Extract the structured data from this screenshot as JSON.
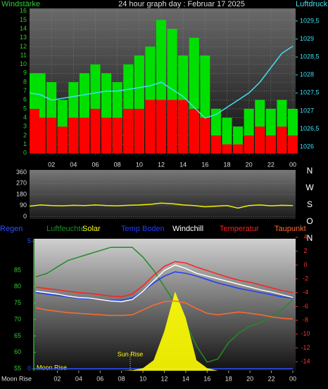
{
  "chart_data": [
    {
      "type": "bar",
      "title": "24 hour graph day : Februar 17 2025",
      "y_label": "Windstärke",
      "y2_label": "Luftdruck",
      "x": [
        0,
        1,
        2,
        3,
        4,
        5,
        6,
        7,
        8,
        9,
        10,
        11,
        12,
        13,
        14,
        15,
        16,
        17,
        18,
        19,
        20,
        21,
        22,
        23,
        24
      ],
      "xlim": [
        0,
        24
      ],
      "xticks": [
        {
          "value": 2,
          "label": "02"
        },
        {
          "value": 4,
          "label": "04"
        },
        {
          "value": 6,
          "label": "06"
        },
        {
          "value": 8,
          "label": "08"
        },
        10,
        12,
        14,
        16,
        18,
        20,
        22,
        {
          "value": 24,
          "label": "00"
        }
      ],
      "ylim": [
        -0.3,
        16.3
      ],
      "yticks": [
        0,
        1,
        2,
        3,
        4,
        5,
        6,
        7,
        8,
        9,
        10,
        11,
        12,
        13,
        14,
        15,
        16
      ],
      "y2lim": [
        1025.75,
        1029.85
      ],
      "y2ticks": [
        1026,
        {
          "value": 1026.5,
          "label": "1026,5"
        },
        1027,
        {
          "value": 1027.5,
          "label": "1027,5"
        },
        1028,
        {
          "value": 1028.5,
          "label": "1028,5"
        },
        1029,
        {
          "value": 1029.5,
          "label": "1029,5"
        }
      ],
      "grid": true,
      "series": [
        {
          "color": "#00e000",
          "values": [
            9,
            9,
            8,
            6,
            8,
            9,
            10,
            9,
            8,
            10,
            11,
            12,
            15,
            14,
            11,
            13,
            11,
            5,
            4,
            3,
            5,
            6,
            5,
            6,
            5
          ]
        },
        {
          "color": "#ff0000",
          "values": [
            5,
            4,
            4,
            3,
            4,
            4,
            5,
            4,
            4,
            5,
            5,
            6,
            6,
            6,
            6,
            5,
            4,
            2,
            1,
            1,
            2,
            3,
            2,
            3,
            2
          ]
        },
        {
          "type": "line",
          "axis": "y2",
          "color": "#40e0f0",
          "values": [
            1027.5,
            1027.45,
            1027.3,
            1027.35,
            1027.4,
            1027.45,
            1027.5,
            1027.55,
            1027.55,
            1027.6,
            1027.65,
            1027.7,
            1027.8,
            1027.6,
            1027.4,
            1027.1,
            1026.8,
            1026.9,
            1027.1,
            1027.3,
            1027.5,
            1027.8,
            1028.2,
            1028.6,
            1028.8
          ]
        }
      ]
    },
    {
      "type": "line",
      "x": [
        0,
        1,
        2,
        3,
        4,
        5,
        6,
        7,
        8,
        9,
        10,
        11,
        12,
        13,
        14,
        15,
        16,
        17,
        18,
        19,
        20,
        21,
        22,
        23,
        24
      ],
      "xlim": [
        0,
        24
      ],
      "ylim": [
        -20,
        380
      ],
      "yticks": [
        360,
        270,
        180,
        90,
        0
      ],
      "compass": [
        "N",
        "W",
        "S",
        "O",
        "N"
      ],
      "series": [
        {
          "color": "#f0f000",
          "values": [
            85,
            95,
            90,
            88,
            92,
            90,
            95,
            90,
            88,
            92,
            95,
            100,
            110,
            105,
            95,
            90,
            80,
            85,
            90,
            70,
            90,
            95,
            88,
            92,
            90
          ]
        }
      ]
    },
    {
      "type": "line",
      "x": [
        0,
        1,
        2,
        3,
        4,
        5,
        6,
        7,
        8,
        9,
        10,
        11,
        12,
        13,
        14,
        15,
        16,
        17,
        18,
        19,
        20,
        21,
        22,
        23,
        24
      ],
      "xlim": [
        0,
        24
      ],
      "xticks": [
        {
          "value": 2,
          "label": "02"
        },
        {
          "value": 4,
          "label": "04"
        },
        {
          "value": 6,
          "label": "06"
        },
        {
          "value": 8,
          "label": "08"
        },
        10,
        12,
        14,
        16,
        18,
        20,
        22,
        {
          "value": 24,
          "label": "00"
        }
      ],
      "ylim": [
        54.4,
        94.6
      ],
      "yticks": [
        85,
        80,
        75,
        70,
        65,
        60,
        55
      ],
      "y2lim": [
        -15.3,
        3.8
      ],
      "y2ticks": [
        4,
        2,
        0,
        -2,
        -4,
        -6,
        -8,
        -10,
        -12,
        -14
      ],
      "y3lim": [
        -0.08,
        5.1
      ],
      "y3ticks": [
        5,
        0
      ],
      "y4lim": [
        0,
        500
      ],
      "annotations": [
        "Sun Rise",
        "Moon Rise",
        "Moon Rise"
      ],
      "series": [
        {
          "name": "Regen",
          "axis": "y3",
          "color": "#3050ff",
          "values": [
            0,
            0,
            0,
            0,
            0,
            0,
            0,
            0,
            0,
            0,
            0,
            0,
            0,
            0,
            0,
            0,
            0,
            0,
            0,
            0,
            0,
            0,
            0,
            0,
            0
          ]
        },
        {
          "name": "Luftfeuchte",
          "color": "#228b22",
          "values": [
            83,
            84,
            86,
            88,
            89,
            90,
            91,
            92,
            92,
            92,
            89,
            85,
            80,
            75,
            69,
            62,
            57,
            58,
            63,
            66,
            68,
            69,
            71,
            73,
            76
          ]
        },
        {
          "name": "Solar",
          "type": "area",
          "axis": "y4",
          "color": "#ffff00",
          "values": [
            0,
            0,
            0,
            0,
            0,
            0,
            0,
            0,
            0,
            2,
            10,
            40,
            150,
            300,
            200,
            40,
            10,
            0,
            0,
            0,
            0,
            0,
            0,
            0,
            0
          ]
        },
        {
          "name": "Temp Boden",
          "axis": "y2",
          "color": "#1e3cff",
          "values": [
            -4,
            -4.2,
            -4.4,
            -4.6,
            -4.8,
            -4.9,
            -5,
            -5.1,
            -5.1,
            -4.8,
            -3.8,
            -2.6,
            -1.6,
            -1,
            -1.2,
            -1.6,
            -2.1,
            -2.6,
            -3,
            -3.4,
            -3.7,
            -4,
            -4.3,
            -4.6,
            -4.8
          ]
        },
        {
          "name": "Windchill",
          "axis": "y2",
          "color": "#ffffff",
          "values": [
            -3.8,
            -4,
            -4.2,
            -4.5,
            -4.7,
            -4.8,
            -5,
            -5.2,
            -5.3,
            -5,
            -3.8,
            -2.3,
            -0.8,
            0,
            -0.5,
            -1.2,
            -1.6,
            -2,
            -2.4,
            -2.8,
            -3.2,
            -3.6,
            -3.9,
            -4.3,
            -4.7
          ]
        },
        {
          "name": "Temperatur",
          "axis": "y2",
          "color": "#ff2020",
          "values": [
            -3.2,
            -3.4,
            -3.6,
            -3.8,
            -4,
            -4.1,
            -4.3,
            -4.5,
            -4.6,
            -4.2,
            -3,
            -1.5,
            -0.2,
            0.5,
            0.3,
            -0.3,
            -0.8,
            -1.3,
            -1.8,
            -2.2,
            -2.5,
            -2.9,
            -3.3,
            -3.7,
            -4
          ]
        },
        {
          "name": "Taupunkt",
          "axis": "y2",
          "color": "#ff6a30",
          "values": [
            -6.2,
            -6.5,
            -6.7,
            -6.9,
            -7,
            -7.1,
            -7.2,
            -7.3,
            -7.3,
            -7.2,
            -6.5,
            -5.8,
            -5.3,
            -5.2,
            -5.5,
            -6.3,
            -7,
            -7.2,
            -7,
            -6.8,
            -7,
            -7.2,
            -7.5,
            -7.7,
            -7.8
          ]
        }
      ]
    }
  ]
}
